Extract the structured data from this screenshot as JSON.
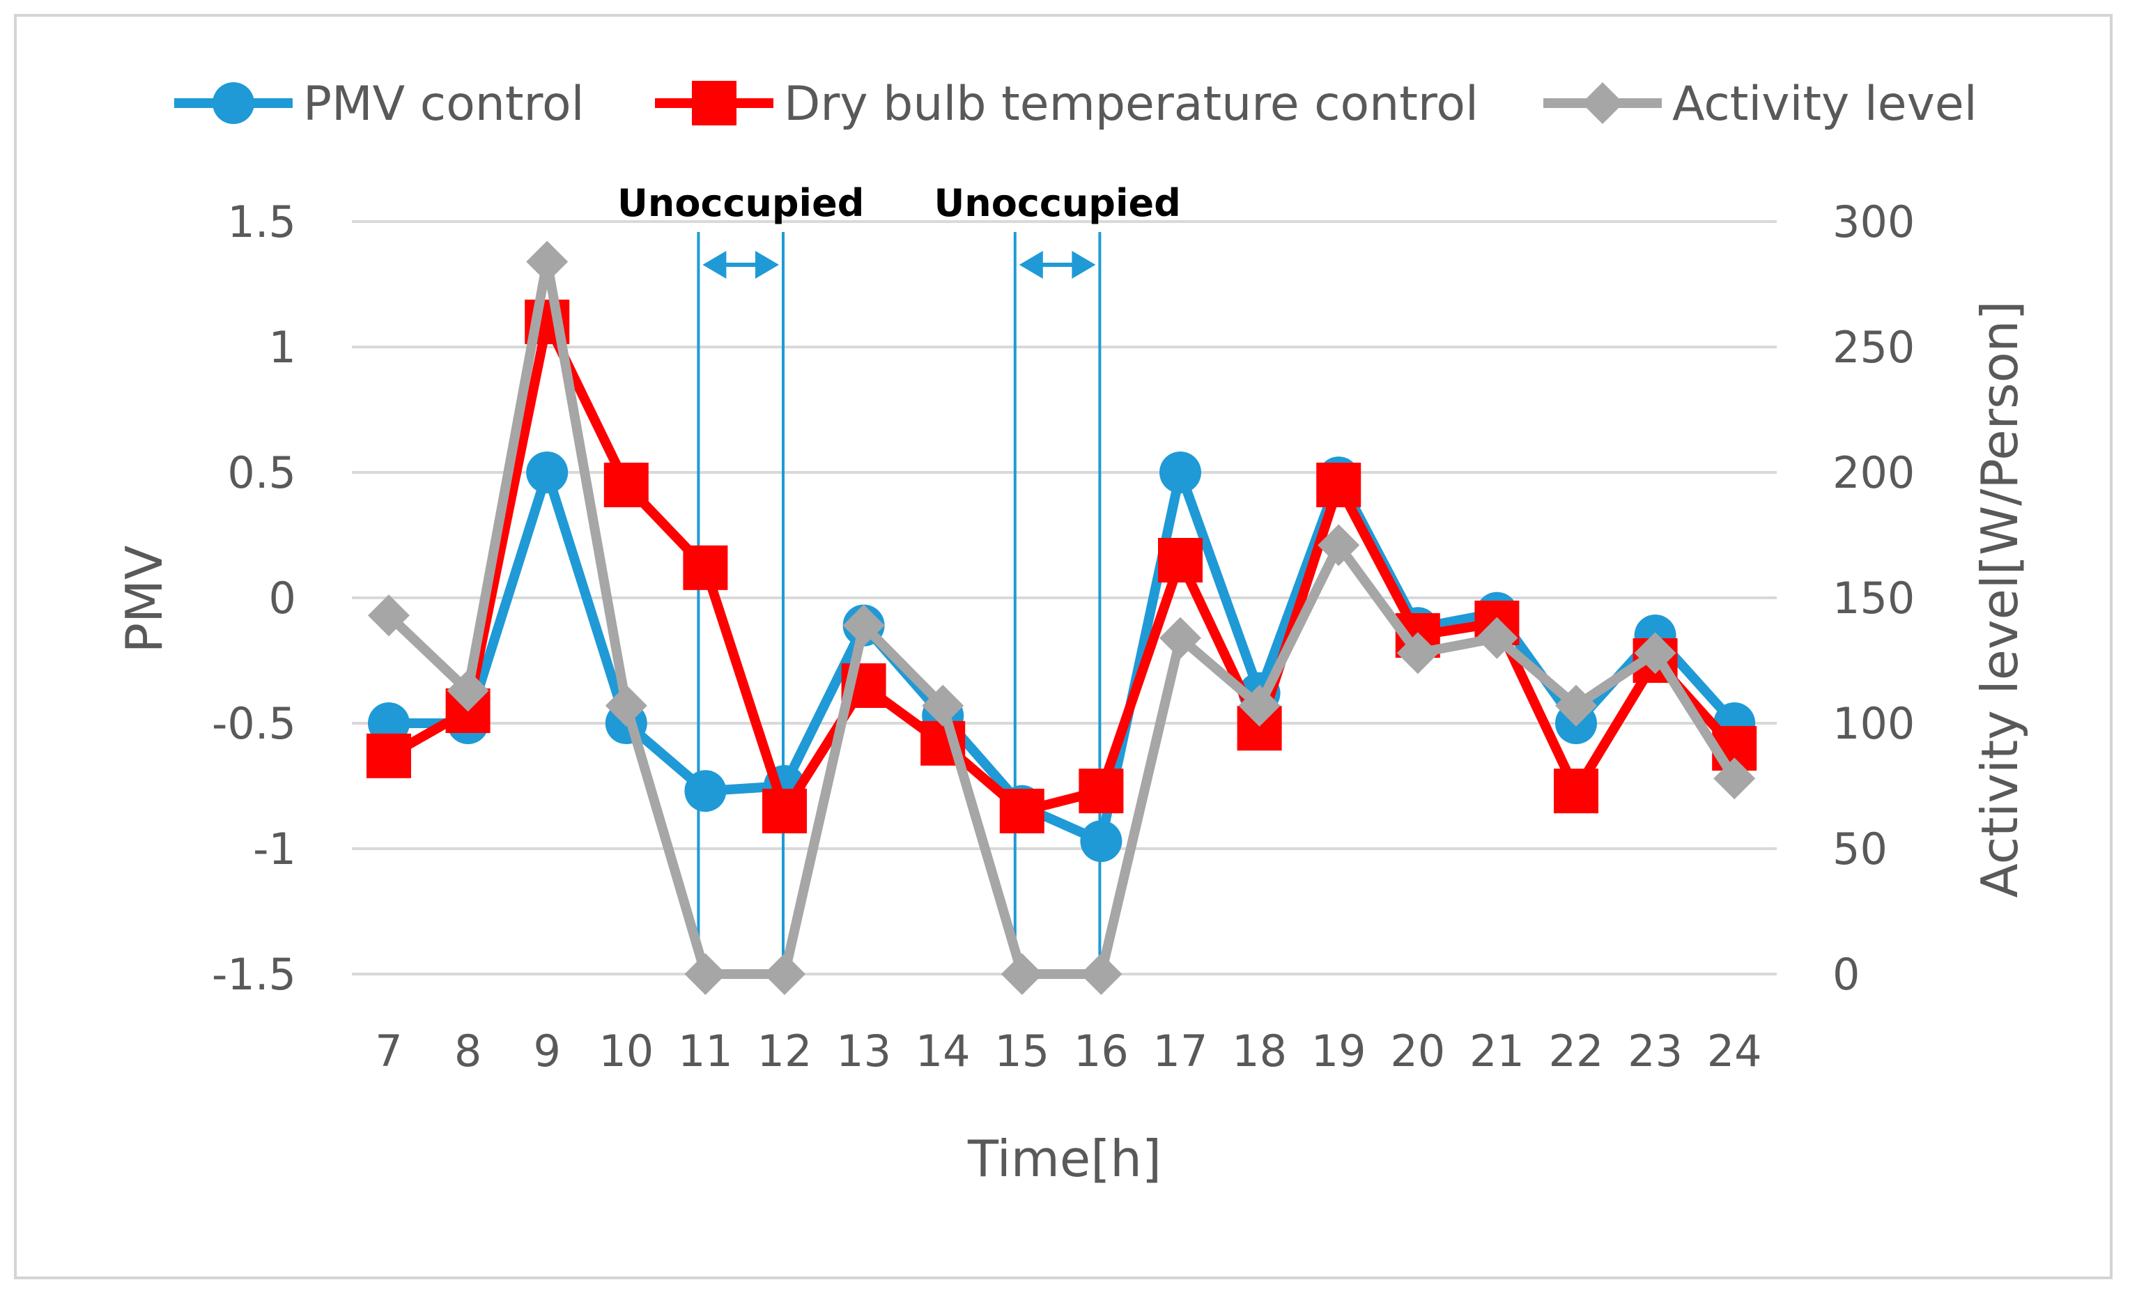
{
  "chart_data": {
    "type": "line",
    "categories": [
      "7",
      "8",
      "9",
      "10",
      "11",
      "12",
      "13",
      "14",
      "15",
      "16",
      "17",
      "18",
      "19",
      "20",
      "21",
      "22",
      "23",
      "24"
    ],
    "xlabel": "Time[h]",
    "ylabel": "PMV",
    "y2label": "Activity level[W/Person]",
    "ylim": [
      -1.5,
      1.5
    ],
    "yticks": [
      "1.5",
      "1",
      "0.5",
      "0",
      "-0.5",
      "-1",
      "-1.5"
    ],
    "y2lim": [
      0,
      300
    ],
    "y2ticks": [
      "300",
      "250",
      "200",
      "150",
      "100",
      "50",
      "0"
    ],
    "grid": true,
    "legend_position": "top",
    "series": [
      {
        "name": "PMV control",
        "axis": "left",
        "color": "#1f9ad6",
        "marker": "circle",
        "values": [
          -0.5,
          -0.5,
          0.5,
          -0.5,
          -0.77,
          -0.75,
          -0.11,
          -0.47,
          -0.83,
          -0.97,
          0.5,
          -0.38,
          0.48,
          -0.12,
          -0.06,
          -0.5,
          -0.15,
          -0.5
        ]
      },
      {
        "name": "Dry bulb temperature control",
        "axis": "left",
        "color": "#ff0000",
        "marker": "square",
        "values": [
          -0.63,
          -0.45,
          1.1,
          0.45,
          0.12,
          -0.85,
          -0.35,
          -0.58,
          -0.85,
          -0.77,
          0.15,
          -0.52,
          0.45,
          -0.15,
          -0.1,
          -0.77,
          -0.25,
          -0.6
        ]
      },
      {
        "name": "Activity level",
        "axis": "right",
        "color": "#a6a6a6",
        "marker": "diamond",
        "values": [
          143,
          113,
          284,
          107,
          0,
          0,
          139,
          107,
          0,
          0,
          134,
          107,
          171,
          128,
          134,
          107,
          128,
          78
        ]
      }
    ],
    "annotations": [
      {
        "text": "Unoccupied",
        "from": "11",
        "to": "12"
      },
      {
        "text": "Unoccupied",
        "from": "15",
        "to": "16"
      }
    ]
  }
}
